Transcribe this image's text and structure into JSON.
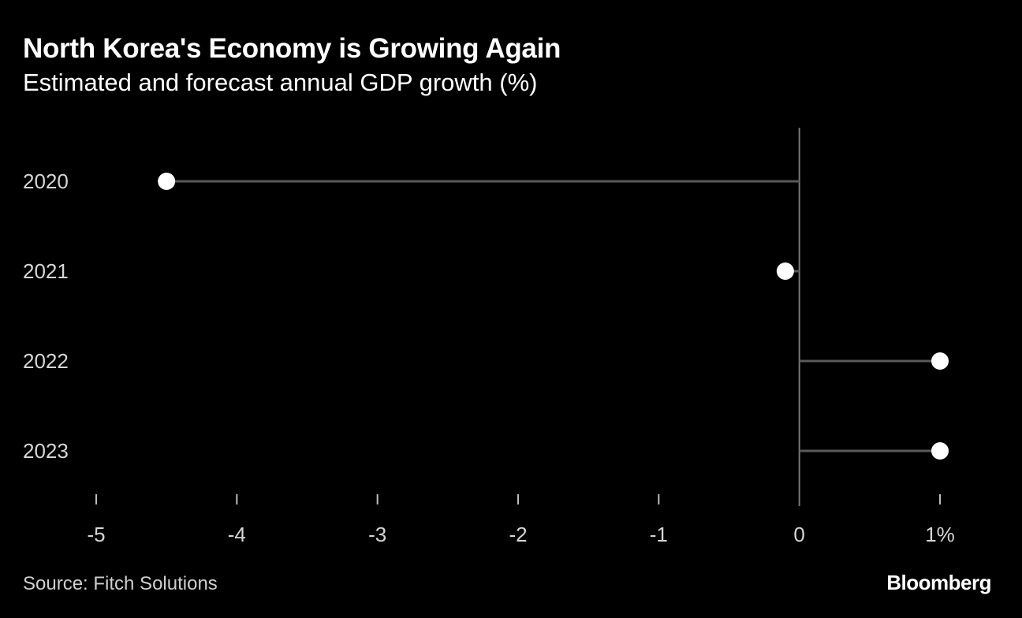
{
  "header": {
    "title": "North Korea's Economy is Growing Again",
    "subtitle": "Estimated and forecast annual GDP growth (%)"
  },
  "footer": {
    "source": "Source: Fitch Solutions",
    "brand": "Bloomberg"
  },
  "colors": {
    "background": "#000000",
    "stem": "#5a5a5a",
    "dot": "#ffffff",
    "zero_line": "#7a7a7a",
    "tick": "#bdbdbd"
  },
  "chart_data": {
    "type": "lollipop",
    "title": "North Korea's Economy is Growing Again",
    "subtitle": "Estimated and forecast annual GDP growth (%)",
    "xlabel": "",
    "ylabel": "",
    "categories": [
      "2020",
      "2021",
      "2022",
      "2023"
    ],
    "values": [
      -4.5,
      -0.1,
      1.0,
      1.0
    ],
    "xlim": [
      -5,
      1
    ],
    "xticks": [
      -5,
      -4,
      -3,
      -2,
      -1,
      0,
      1
    ],
    "xtick_labels": [
      "-5",
      "-4",
      "-3",
      "-2",
      "-1",
      "0",
      "1%"
    ],
    "baseline": 0,
    "grid": false
  }
}
